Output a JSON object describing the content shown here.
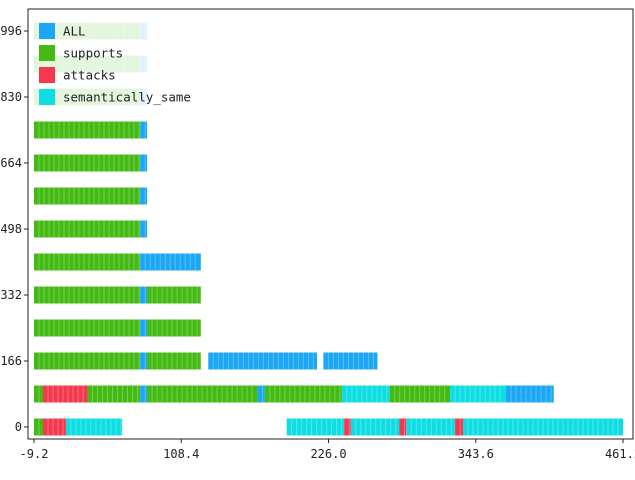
{
  "chart_data": {
    "type": "bar",
    "orientation": "horizontal",
    "title": "",
    "xlabel": "",
    "ylabel": "",
    "xlim": [
      -9.2,
      461.2
    ],
    "ylim": [
      -20,
      1016
    ],
    "x_ticks": [
      -9.2,
      108.4,
      226.0,
      343.6,
      461.2
    ],
    "x_tick_labels": [
      "-9.2",
      "108.4",
      "226.0",
      "343.6",
      "461.2"
    ],
    "y_ticks": [
      0,
      166,
      332,
      498,
      664,
      830,
      996
    ],
    "y_tick_labels": [
      "0",
      "166",
      "332",
      "498",
      "664",
      "830",
      "996"
    ],
    "grid": false,
    "legend_position": "top-left",
    "series": [
      {
        "name": "ALL",
        "color": "#1ba7f5"
      },
      {
        "name": "supports",
        "color": "#44bb14"
      },
      {
        "name": "attacks",
        "color": "#f5384e"
      },
      {
        "name": "semantically_same",
        "color": "#0fdde4"
      }
    ],
    "rows": [
      {
        "y": 0,
        "segments": [
          {
            "series": "supports",
            "start": -9.2,
            "end": -2.0
          },
          {
            "series": "attacks",
            "start": -2.0,
            "end": 16.3
          },
          {
            "series": "semantically_same",
            "start": 16.3,
            "end": 61.2
          },
          {
            "series": "semantically_same",
            "start": 192.6,
            "end": 238.5
          },
          {
            "series": "attacks",
            "start": 238.5,
            "end": 243.8
          },
          {
            "series": "semantically_same",
            "start": 243.8,
            "end": 282.7
          },
          {
            "series": "attacks",
            "start": 282.7,
            "end": 288.1
          },
          {
            "series": "semantically_same",
            "start": 288.1,
            "end": 327.1
          },
          {
            "series": "attacks",
            "start": 327.1,
            "end": 333.4
          },
          {
            "series": "semantically_same",
            "start": 333.4,
            "end": 461.2
          }
        ]
      },
      {
        "y": 83,
        "segments": [
          {
            "series": "supports",
            "start": -9.2,
            "end": -2.0
          },
          {
            "series": "attacks",
            "start": -2.0,
            "end": 33.5
          },
          {
            "series": "supports",
            "start": 33.5,
            "end": 75.6
          },
          {
            "series": "ALL",
            "start": 75.6,
            "end": 81.1
          },
          {
            "series": "supports",
            "start": 81.1,
            "end": 169.4
          },
          {
            "series": "ALL",
            "start": 169.4,
            "end": 175.2
          },
          {
            "series": "supports",
            "start": 175.2,
            "end": 236.7
          },
          {
            "series": "semantically_same",
            "start": 236.7,
            "end": 274.9
          },
          {
            "series": "supports",
            "start": 274.9,
            "end": 323.1
          },
          {
            "series": "semantically_same",
            "start": 323.1,
            "end": 367.8
          },
          {
            "series": "ALL",
            "start": 367.8,
            "end": 405.9
          }
        ]
      },
      {
        "y": 166,
        "segments": [
          {
            "series": "supports",
            "start": -9.2,
            "end": 75.6
          },
          {
            "series": "ALL",
            "start": 75.6,
            "end": 81.1
          },
          {
            "series": "supports",
            "start": 81.1,
            "end": 124.0
          },
          {
            "series": "ALL",
            "start": 130.0,
            "end": 216.8
          },
          {
            "series": "ALL",
            "start": 221.9,
            "end": 265.1
          }
        ]
      },
      {
        "y": 249,
        "segments": [
          {
            "series": "supports",
            "start": -9.2,
            "end": 75.6
          },
          {
            "series": "ALL",
            "start": 75.6,
            "end": 81.1
          },
          {
            "series": "supports",
            "start": 81.1,
            "end": 124.0
          }
        ]
      },
      {
        "y": 332,
        "segments": [
          {
            "series": "supports",
            "start": -9.2,
            "end": 75.6
          },
          {
            "series": "ALL",
            "start": 75.6,
            "end": 81.1
          },
          {
            "series": "supports",
            "start": 81.1,
            "end": 124.0
          }
        ]
      },
      {
        "y": 415,
        "segments": [
          {
            "series": "supports",
            "start": -9.2,
            "end": 75.6
          },
          {
            "series": "ALL",
            "start": 75.6,
            "end": 124.0
          }
        ]
      },
      {
        "y": 498,
        "segments": [
          {
            "series": "supports",
            "start": -9.2,
            "end": 75.6
          },
          {
            "series": "ALL",
            "start": 75.6,
            "end": 81.1
          }
        ]
      },
      {
        "y": 581,
        "segments": [
          {
            "series": "supports",
            "start": -9.2,
            "end": 75.6
          },
          {
            "series": "ALL",
            "start": 75.6,
            "end": 81.1
          }
        ]
      },
      {
        "y": 664,
        "segments": [
          {
            "series": "supports",
            "start": -9.2,
            "end": 75.6
          },
          {
            "series": "ALL",
            "start": 75.6,
            "end": 81.1
          }
        ]
      },
      {
        "y": 747,
        "segments": [
          {
            "series": "supports",
            "start": -9.2,
            "end": 75.6
          },
          {
            "series": "ALL",
            "start": 75.6,
            "end": 81.1
          }
        ]
      },
      {
        "y": 830,
        "segments": [
          {
            "series": "supports",
            "start": -9.2,
            "end": 75.6
          },
          {
            "series": "ALL",
            "start": 75.6,
            "end": 81.1
          }
        ]
      },
      {
        "y": 913,
        "segments": [
          {
            "series": "supports",
            "start": -9.2,
            "end": 75.6
          },
          {
            "series": "ALL",
            "start": 75.6,
            "end": 81.1
          }
        ]
      },
      {
        "y": 996,
        "segments": [
          {
            "series": "supports",
            "start": -9.2,
            "end": 75.6
          },
          {
            "series": "ALL",
            "start": 75.6,
            "end": 81.1
          }
        ]
      }
    ]
  }
}
